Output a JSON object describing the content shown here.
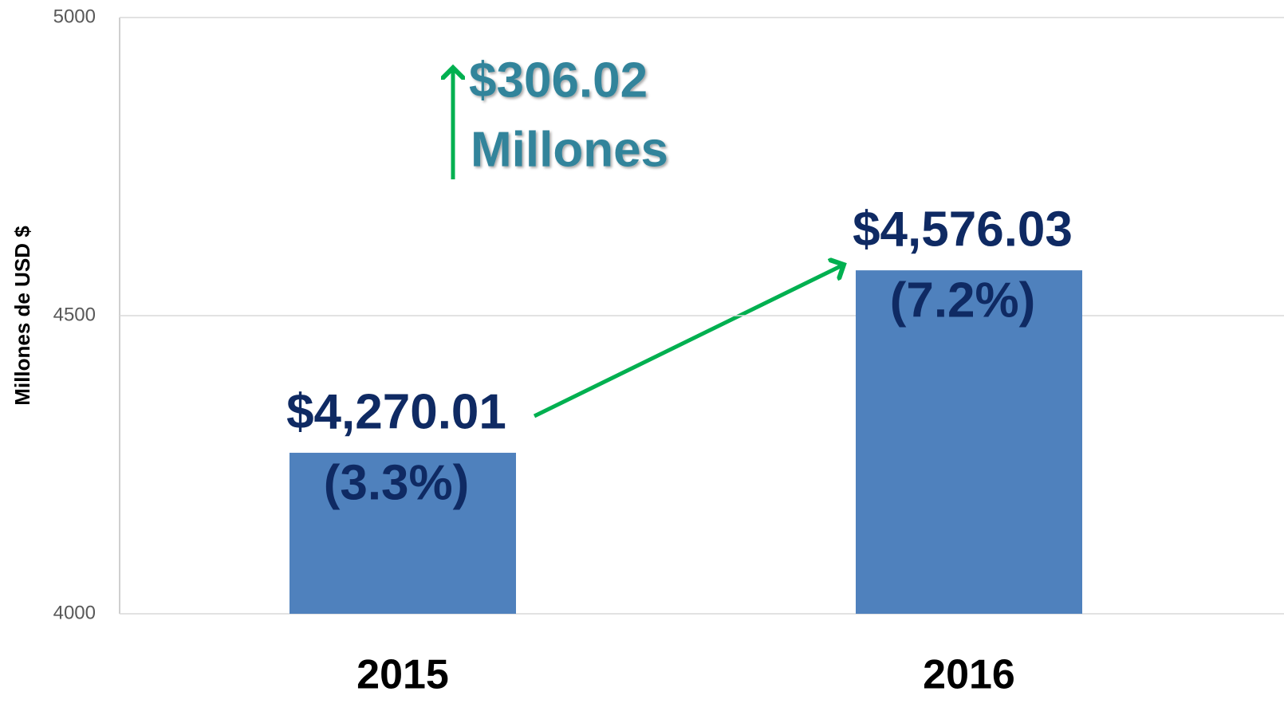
{
  "chart_data": {
    "type": "bar",
    "y_label": "Millones de USD $",
    "categories": [
      "2015",
      "2016"
    ],
    "values": [
      4270.01,
      4576.03
    ],
    "value_labels": [
      "$4,270.01",
      "$4,576.03"
    ],
    "percent_labels": [
      "(3.3%)",
      "(7.2%)"
    ],
    "annotations": [
      "$306.02",
      "Millones"
    ],
    "color": "#4f81bd",
    "ylim": [
      4000,
      5000
    ],
    "yticks": [
      4000,
      4500,
      5000
    ],
    "grid": true
  }
}
